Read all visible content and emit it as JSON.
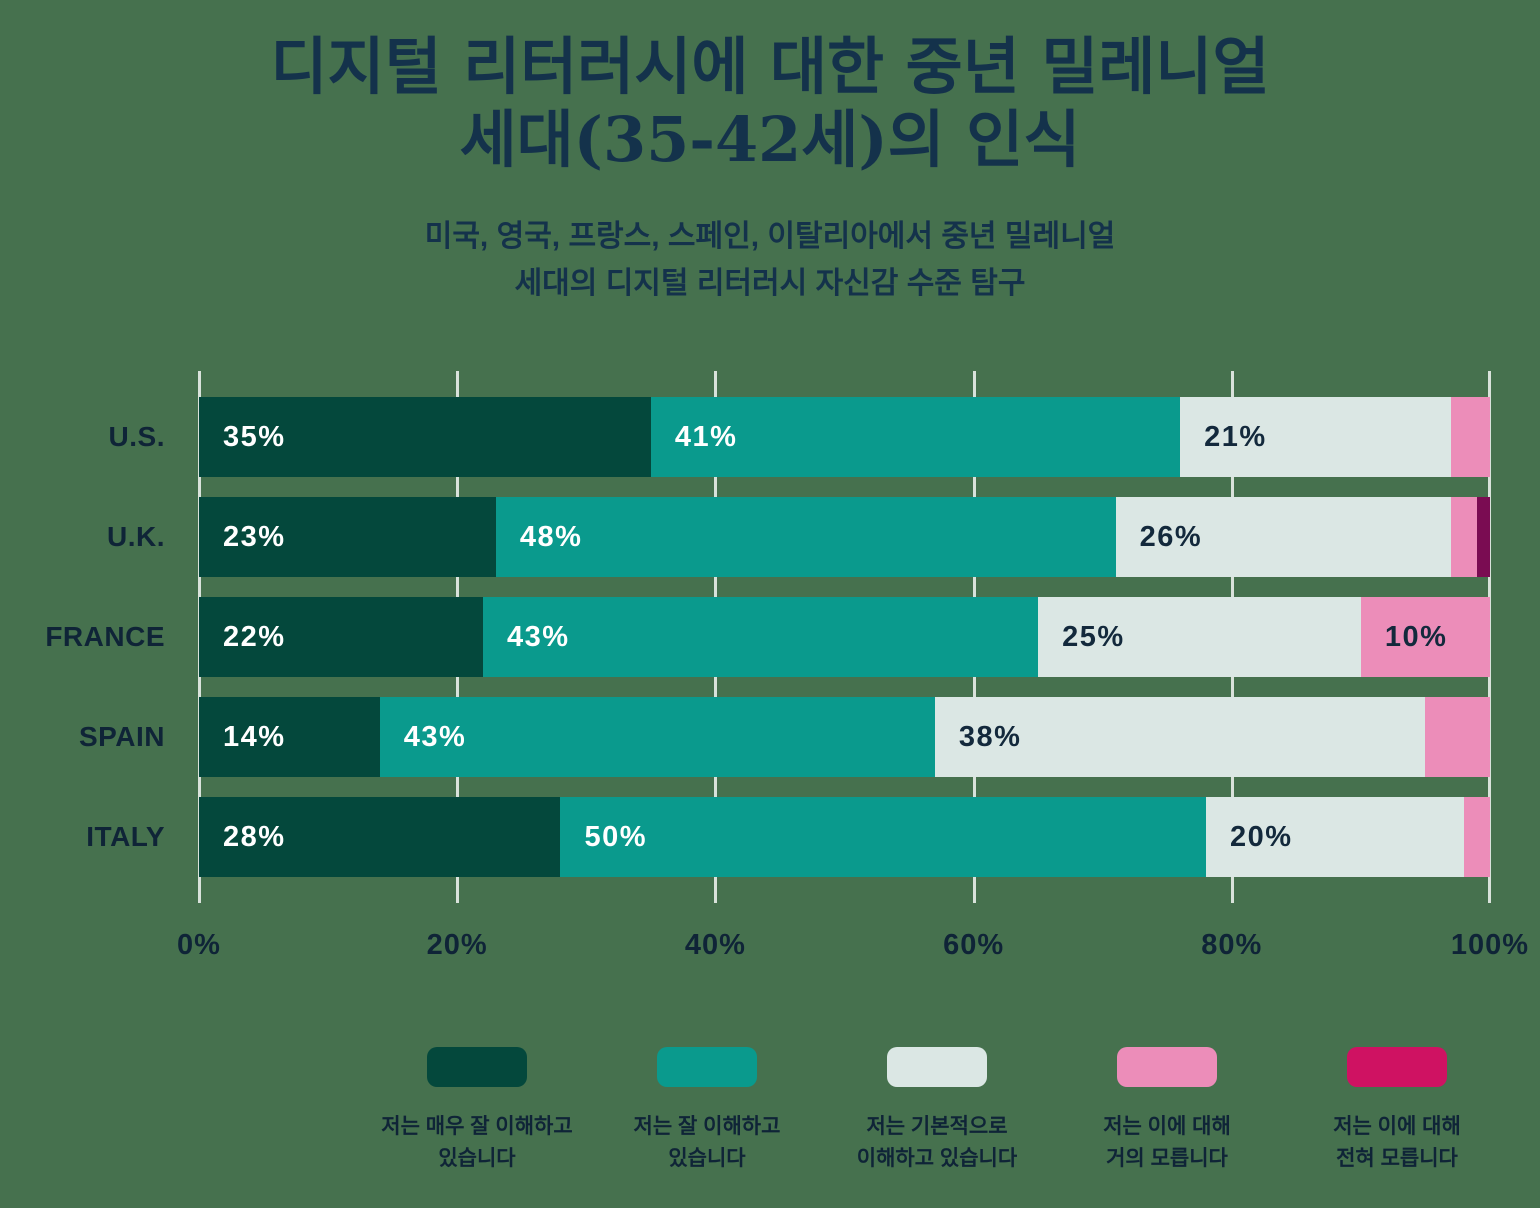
{
  "title": "디지털 리터러시에 대한 중년 밀레니얼\n세대(35-42세)의 인식",
  "subtitle": "미국, 영국, 프랑스, 스페인, 이탈리아에서 중년 밀레니얼\n세대의 디지털 리터러시 자신감 수준 탐구",
  "colors": {
    "background": "#46714E",
    "title_text": "#14324B",
    "axis_text": "#0F2437",
    "gridline": "#D9E2DB",
    "label_on_dark": "#FFFFFF",
    "label_on_light": "#13293C"
  },
  "chart_data": {
    "type": "bar",
    "stacked": true,
    "orientation": "horizontal",
    "unit": "%",
    "categories": [
      "U.S.",
      "U.K.",
      "FRANCE",
      "SPAIN",
      "ITALY"
    ],
    "series": [
      {
        "name": "저는 매우 잘 이해하고 있습니다",
        "legend_label": "저는 매우 잘 이해하고\n있습니다",
        "color": "#04483C",
        "label_color": "#FFFFFF",
        "values": [
          35,
          23,
          22,
          14,
          28
        ]
      },
      {
        "name": "저는 잘 이해하고 있습니다",
        "legend_label": "저는 잘 이해하고\n있습니다",
        "color": "#0A9A8D",
        "label_color": "#FFFFFF",
        "values": [
          41,
          48,
          43,
          43,
          50
        ]
      },
      {
        "name": "저는 기본적으로 이해하고 있습니다",
        "legend_label": "저는 기본적으로\n이해하고 있습니다",
        "color": "#DBE7E4",
        "label_color": "#13293C",
        "values": [
          21,
          26,
          25,
          38,
          20
        ]
      },
      {
        "name": "저는 이에 대해 거의 모릅니다",
        "legend_label": "저는 이에 대해\n거의 모릅니다",
        "color": "#EC8DB9",
        "label_color": "#13293C",
        "values": [
          3,
          2,
          10,
          5,
          2
        ]
      },
      {
        "name": "저는 이에 대해 전혀 모릅니다",
        "legend_label": "저는 이에 대해\n전혀 모릅니다",
        "color": "#CF1262",
        "bar_color": "#7A0C52",
        "label_color": "#FFFFFF",
        "values": [
          0,
          1,
          0,
          0,
          0
        ]
      }
    ],
    "x_ticks": [
      "0%",
      "20%",
      "40%",
      "60%",
      "80%",
      "100%"
    ],
    "xlim": [
      0,
      100
    ],
    "grid": true,
    "legend_position": "bottom"
  }
}
